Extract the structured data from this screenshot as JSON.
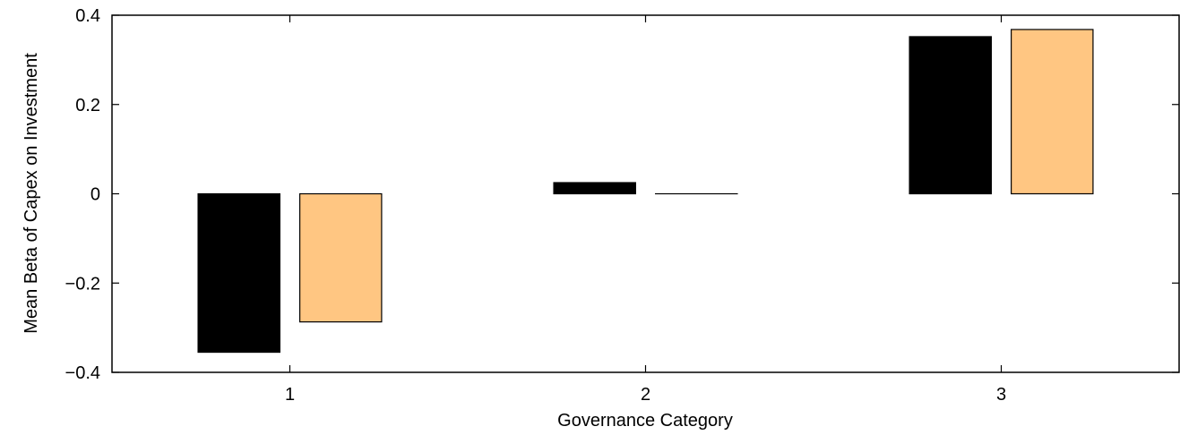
{
  "chart_data": {
    "type": "bar",
    "categories": [
      "1",
      "2",
      "3"
    ],
    "series": [
      {
        "values": [
          -0.355,
          0.025,
          0.352
        ],
        "color": "#000000"
      },
      {
        "values": [
          -0.287,
          0.0,
          0.368
        ],
        "color": "#FFC682"
      }
    ],
    "xlabel": "Governance Category",
    "ylabel": "Mean Beta of Capex on Investment",
    "ylim": [
      -0.4,
      0.4
    ],
    "yticks": [
      {
        "value": -0.4,
        "label": "−0.4"
      },
      {
        "value": -0.2,
        "label": "−0.2"
      },
      {
        "value": 0,
        "label": "0"
      },
      {
        "value": 0.2,
        "label": "0.2"
      },
      {
        "value": 0.4,
        "label": "0.4"
      }
    ],
    "grid": false,
    "legend": "none"
  }
}
